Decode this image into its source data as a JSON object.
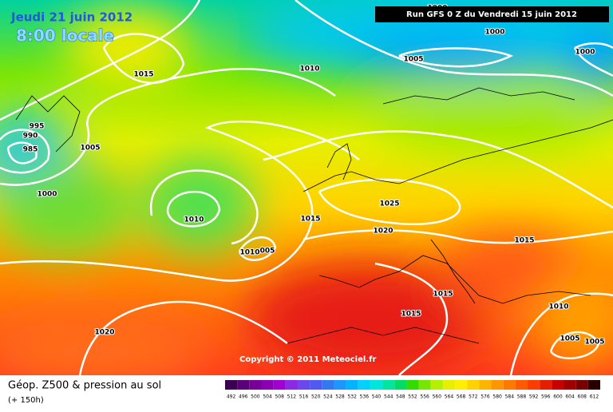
{
  "header": {
    "date": "Jeudi 21 juin 2012",
    "time": "8:00 locale",
    "run": "Run GFS 0 Z du Vendredi 15 juin 2012"
  },
  "isobar_labels": [
    "1000",
    "1000",
    "1005",
    "1000",
    "1015",
    "1010",
    "995",
    "990",
    "985",
    "1005",
    "1000",
    "1010",
    "1015",
    "1025",
    "1020",
    "1015",
    "1010",
    "005",
    "1015",
    "1015",
    "1020",
    "1010",
    "1005",
    "1005"
  ],
  "copyright": "Copyright © 2011 Meteociel.fr",
  "legend": {
    "title": "Géop. Z500 & pression au sol",
    "lead_time": "(+ 150h)",
    "scale": [
      492,
      496,
      500,
      504,
      508,
      512,
      516,
      520,
      524,
      528,
      532,
      536,
      540,
      544,
      548,
      552,
      556,
      560,
      564,
      568,
      572,
      576,
      580,
      584,
      588,
      592,
      596,
      600,
      604,
      608,
      612
    ]
  }
}
